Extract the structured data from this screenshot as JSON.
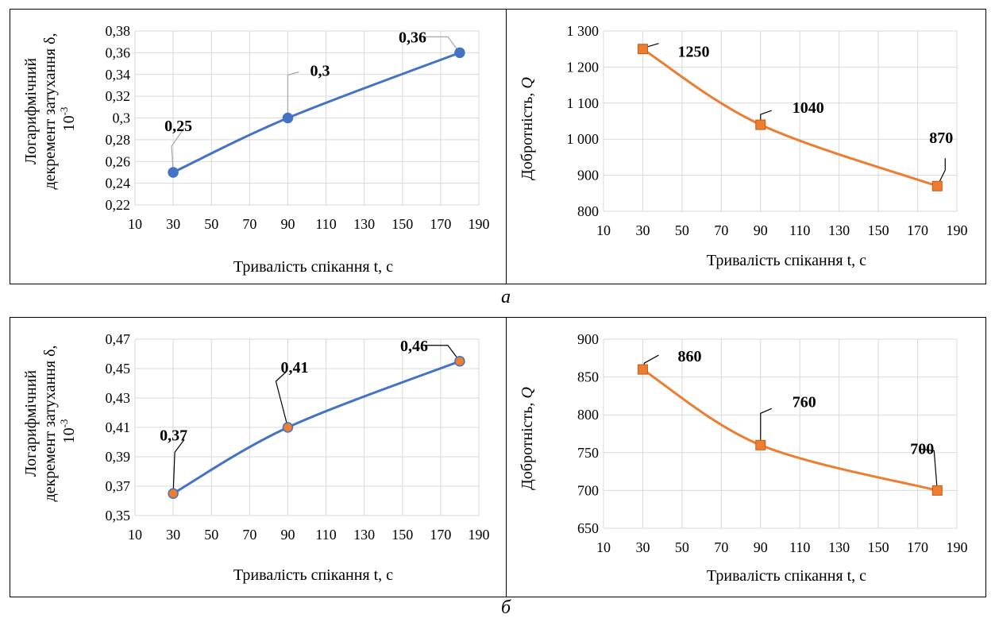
{
  "figure": {
    "captions": [
      "а",
      "б"
    ]
  },
  "chart_data": [
    {
      "type": "line",
      "panel": "а",
      "xlabel": "Тривалість спікання t, с",
      "ylabel_line1": "Логарифмічний",
      "ylabel_line2": "декремент затухання δ,",
      "ylabel_unit": "10",
      "ylabel_unit_sup": "-3",
      "x_ticks": [
        10,
        30,
        50,
        70,
        90,
        110,
        130,
        150,
        170,
        190
      ],
      "xlim": [
        10,
        190
      ],
      "ylim": [
        0.22,
        0.38
      ],
      "y_ticks": [
        0.22,
        0.24,
        0.26,
        0.28,
        0.3,
        0.32,
        0.34,
        0.36,
        0.38
      ],
      "y_tick_labels": [
        "0,22",
        "0,24",
        "0,26",
        "0,28",
        "0,3",
        "0,32",
        "0,34",
        "0,36",
        "0,38"
      ],
      "grid": true,
      "x": [
        30,
        90,
        180
      ],
      "values": [
        0.25,
        0.3,
        0.36
      ],
      "data_labels": [
        "0,25",
        "0,3",
        "0,36"
      ],
      "line_color": "#4472C4",
      "marker_fill": "#4472C4",
      "marker": "circle",
      "leader_color": "#A6A6A6"
    },
    {
      "type": "line",
      "panel": "а",
      "xlabel": "Тривалість спікання t, с",
      "ylabel_line1": "Добротність, ",
      "ylabel_italic": "Q",
      "x_ticks": [
        10,
        30,
        50,
        70,
        90,
        110,
        130,
        150,
        170,
        190
      ],
      "xlim": [
        10,
        190
      ],
      "ylim": [
        800,
        1300
      ],
      "y_ticks": [
        800,
        900,
        1000,
        1100,
        1200,
        1300
      ],
      "y_tick_labels": [
        "800",
        "900",
        "1 000",
        "1 100",
        "1 200",
        "1 300"
      ],
      "grid": true,
      "x": [
        30,
        90,
        180
      ],
      "values": [
        1250,
        1040,
        870
      ],
      "data_labels": [
        "1250",
        "1040",
        "870"
      ],
      "line_color": "#ED7D31",
      "marker_fill": "#ED7D31",
      "marker": "square",
      "leader_color": "#000000"
    },
    {
      "type": "line",
      "panel": "б",
      "xlabel": "Тривалість спікання t, с",
      "ylabel_line1": "Логарифмічний",
      "ylabel_line2": "декремент затухання δ,",
      "ylabel_unit": "10",
      "ylabel_unit_sup": "-3",
      "x_ticks": [
        10,
        30,
        50,
        70,
        90,
        110,
        130,
        150,
        170,
        190
      ],
      "xlim": [
        10,
        190
      ],
      "ylim": [
        0.35,
        0.47
      ],
      "y_ticks": [
        0.35,
        0.37,
        0.39,
        0.41,
        0.43,
        0.45,
        0.47
      ],
      "y_tick_labels": [
        "0,35",
        "0,37",
        "0,39",
        "0,41",
        "0,43",
        "0,45",
        "0,47"
      ],
      "grid": true,
      "x": [
        30,
        90,
        180
      ],
      "values": [
        0.365,
        0.41,
        0.455
      ],
      "data_labels": [
        "0,37",
        "0,41",
        "0,46"
      ],
      "line_color": "#4472C4",
      "marker_fill": "#ED7D31",
      "marker": "circle",
      "leader_color": "#000000"
    },
    {
      "type": "line",
      "panel": "б",
      "xlabel": "Тривалість спікання t, с",
      "ylabel_line1": "Добротність, ",
      "ylabel_italic": "Q",
      "x_ticks": [
        10,
        30,
        50,
        70,
        90,
        110,
        130,
        150,
        170,
        190
      ],
      "xlim": [
        10,
        190
      ],
      "ylim": [
        650,
        900
      ],
      "y_ticks": [
        650,
        700,
        750,
        800,
        850,
        900
      ],
      "y_tick_labels": [
        "650",
        "700",
        "750",
        "800",
        "850",
        "900"
      ],
      "grid": true,
      "x": [
        30,
        90,
        180
      ],
      "values": [
        860,
        760,
        700
      ],
      "data_labels": [
        "860",
        "760",
        "700"
      ],
      "line_color": "#ED7D31",
      "marker_fill": "#ED7D31",
      "marker": "square",
      "leader_color": "#000000"
    }
  ]
}
